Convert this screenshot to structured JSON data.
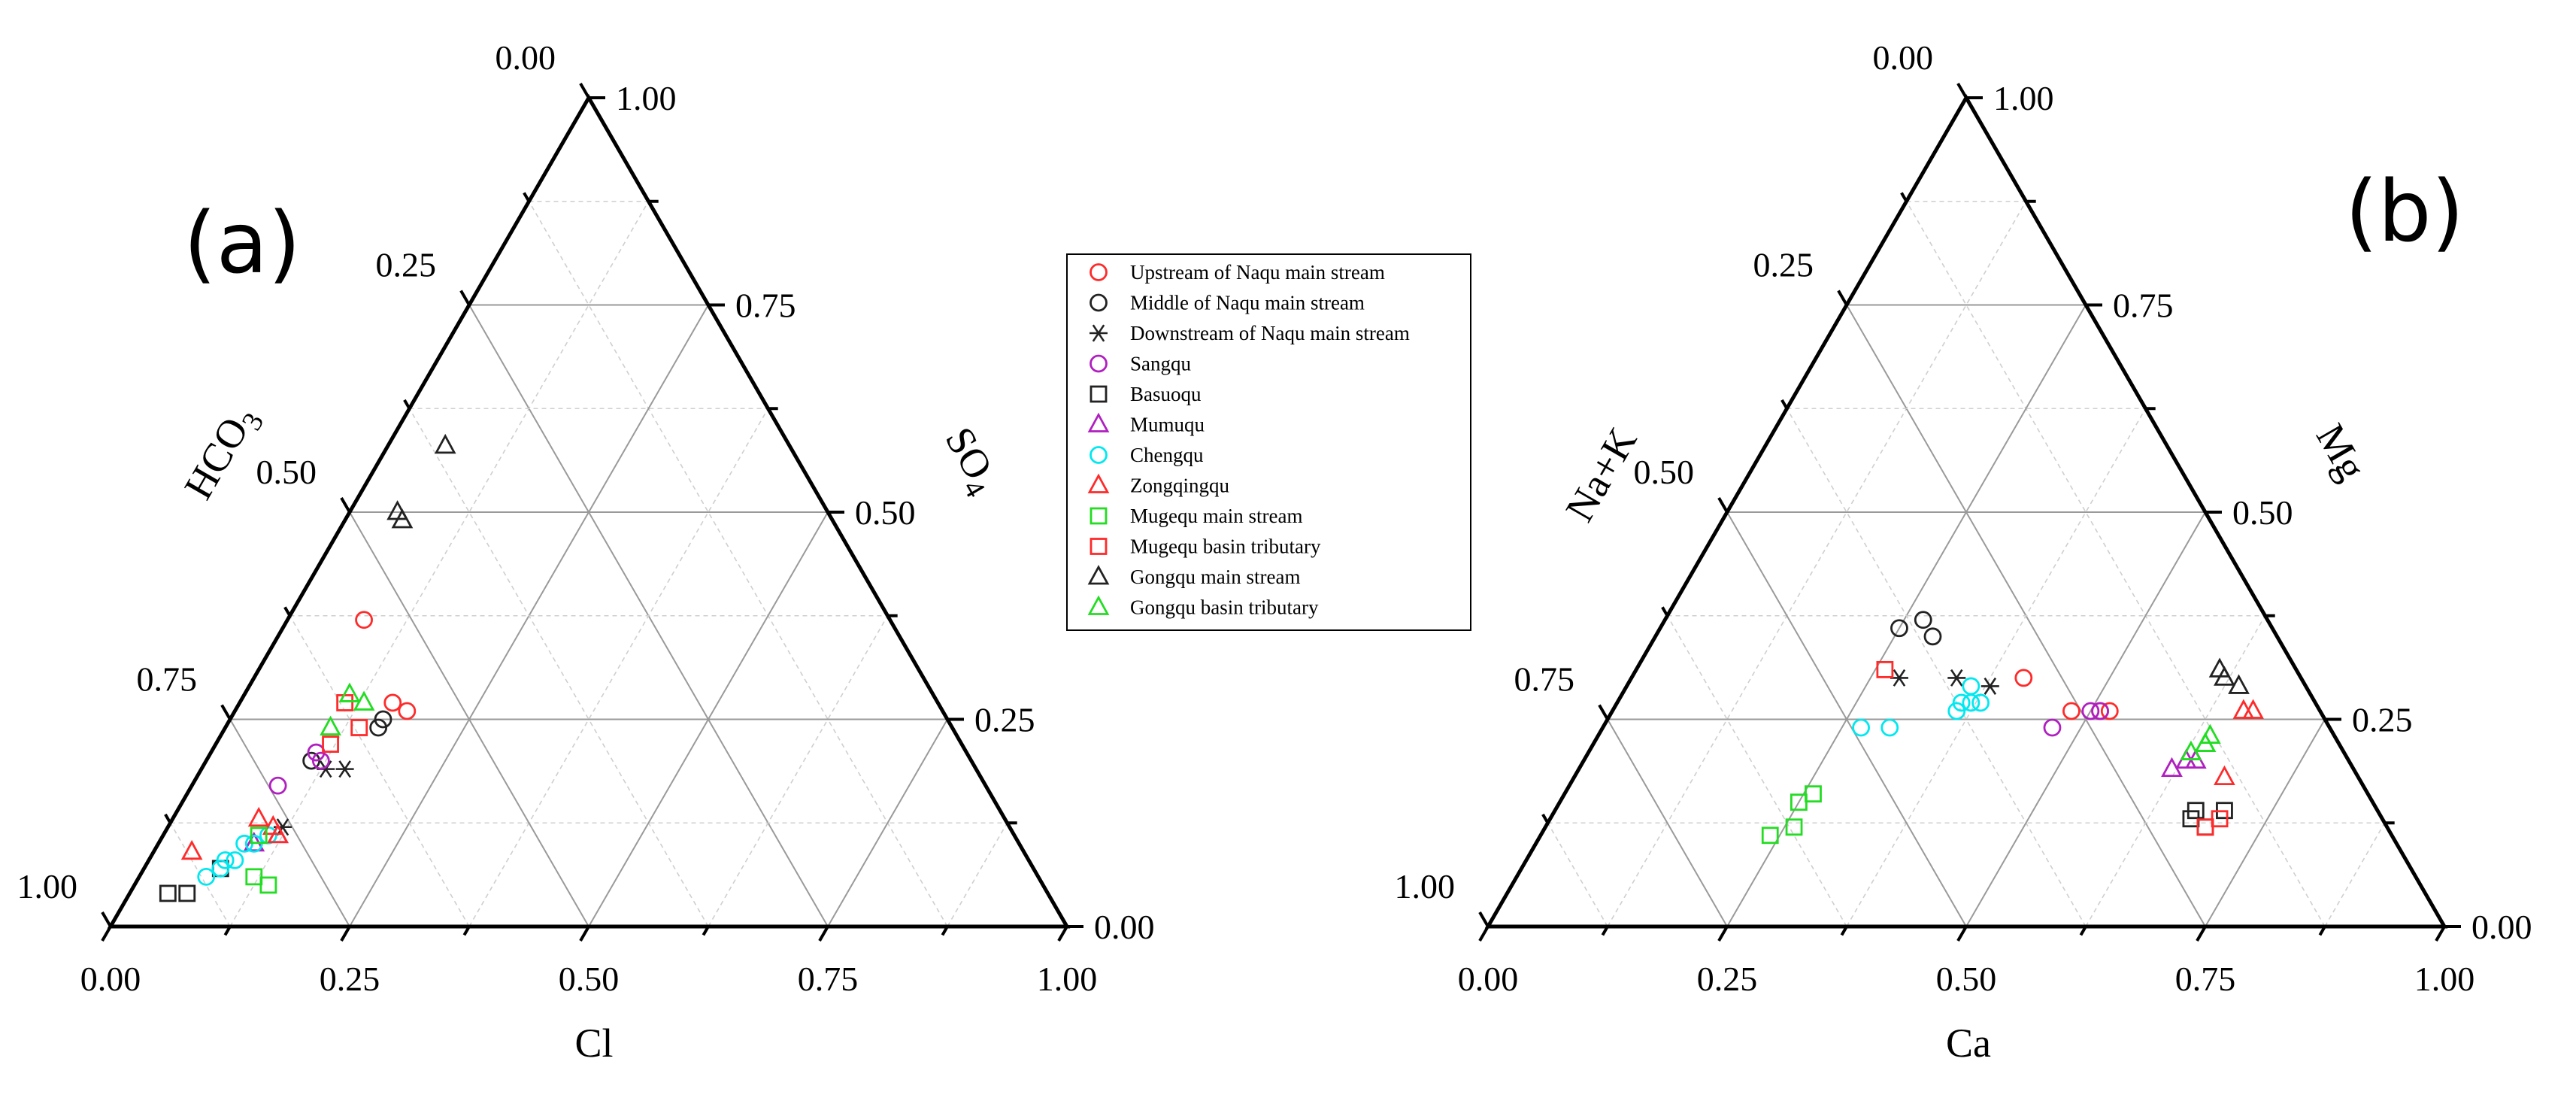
{
  "colors": {
    "red": "#ff2a2a",
    "black": "#222222",
    "purple": "#b01fc0",
    "cyan": "#00e8f0",
    "green": "#22dd22"
  },
  "legend": [
    {
      "id": "upstream-naqu",
      "label": "Upstream of Naqu main stream",
      "marker": "circle",
      "color": "#ff2a2a"
    },
    {
      "id": "middle-naqu",
      "label": "Middle of Naqu main stream",
      "marker": "circle",
      "color": "#222222"
    },
    {
      "id": "downstream-naqu",
      "label": "Downstream of Naqu main stream",
      "marker": "star",
      "color": "#222222"
    },
    {
      "id": "sangqu",
      "label": "Sangqu",
      "marker": "circle",
      "color": "#b01fc0"
    },
    {
      "id": "basuoqu",
      "label": "Basuoqu",
      "marker": "square",
      "color": "#222222"
    },
    {
      "id": "mumuqu",
      "label": "Mumuqu",
      "marker": "triangle",
      "color": "#b01fc0"
    },
    {
      "id": "chengqu",
      "label": "Chengqu",
      "marker": "circle",
      "color": "#00e8f0"
    },
    {
      "id": "zongqingqu",
      "label": "Zongqingqu",
      "marker": "triangle",
      "color": "#ff2a2a"
    },
    {
      "id": "mugequ-main",
      "label": "Mugequ main stream",
      "marker": "square",
      "color": "#22dd22"
    },
    {
      "id": "mugequ-trib",
      "label": "Mugequ basin tributary",
      "marker": "square",
      "color": "#ff2a2a"
    },
    {
      "id": "gongqu-main",
      "label": "Gongqu main stream",
      "marker": "triangle",
      "color": "#222222"
    },
    {
      "id": "gongqu-trib",
      "label": "Gongqu basin tributary",
      "marker": "triangle",
      "color": "#22dd22"
    }
  ],
  "chart_data": [
    {
      "type": "ternary",
      "panel": "(a)",
      "bottom_axis": {
        "label": "Cl",
        "ticks": [
          "0.00",
          "0.25",
          "0.50",
          "0.75",
          "1.00"
        ]
      },
      "left_axis": {
        "label": "HCO3",
        "ticks": [
          "1.00",
          "0.75",
          "0.50",
          "0.25",
          "0.00"
        ]
      },
      "right_axis": {
        "label": "SO4",
        "ticks": [
          "0.00",
          "0.25",
          "0.50",
          "0.75",
          "1.00"
        ]
      },
      "range": [
        0,
        1
      ],
      "grid": true,
      "series": [
        {
          "id": "upstream-naqu",
          "points": [
            [
              0.16,
              0.27
            ],
            [
              0.18,
              0.26
            ],
            [
              0.08,
              0.37
            ]
          ]
        },
        {
          "id": "middle-naqu",
          "points": [
            [
              0.16,
              0.25
            ],
            [
              0.16,
              0.24
            ],
            [
              0.11,
              0.2
            ]
          ]
        },
        {
          "id": "downstream-naqu",
          "points": [
            [
              0.15,
              0.19
            ],
            [
              0.13,
              0.19
            ],
            [
              0.12,
              0.12
            ]
          ]
        },
        {
          "id": "sangqu",
          "points": [
            [
              0.11,
              0.21
            ],
            [
              0.12,
              0.2
            ],
            [
              0.09,
              0.17
            ]
          ]
        },
        {
          "id": "basuoqu",
          "points": [
            [
              0.04,
              0.04
            ],
            [
              0.06,
              0.04
            ],
            [
              0.08,
              0.07
            ]
          ]
        },
        {
          "id": "mumuqu",
          "points": [
            [
              0.1,
              0.1
            ],
            [
              0.12,
              0.11
            ]
          ]
        },
        {
          "id": "chengqu",
          "points": [
            [
              0.11,
              0.11
            ],
            [
              0.1,
              0.1
            ],
            [
              0.09,
              0.1
            ],
            [
              0.09,
              0.08
            ],
            [
              0.08,
              0.08
            ],
            [
              0.08,
              0.07
            ],
            [
              0.07,
              0.06
            ]
          ]
        },
        {
          "id": "zongqingqu",
          "points": [
            [
              0.09,
              0.13
            ],
            [
              0.11,
              0.12
            ],
            [
              0.12,
              0.11
            ],
            [
              0.04,
              0.09
            ]
          ]
        },
        {
          "id": "mugequ-main",
          "points": [
            [
              0.1,
              0.11
            ],
            [
              0.12,
              0.06
            ],
            [
              0.14,
              0.05
            ]
          ]
        },
        {
          "id": "mugequ-trib",
          "points": [
            [
              0.12,
              0.22
            ],
            [
              0.14,
              0.24
            ],
            [
              0.11,
              0.27
            ]
          ]
        },
        {
          "id": "gongqu-main",
          "points": [
            [
              0.06,
              0.58
            ],
            [
              0.05,
              0.5
            ],
            [
              0.06,
              0.49
            ]
          ]
        },
        {
          "id": "gongqu-trib",
          "points": [
            [
              0.11,
              0.28
            ],
            [
              0.13,
              0.27
            ],
            [
              0.11,
              0.24
            ]
          ]
        }
      ]
    },
    {
      "type": "ternary",
      "panel": "(b)",
      "bottom_axis": {
        "label": "Ca",
        "ticks": [
          "0.00",
          "0.25",
          "0.50",
          "0.75",
          "1.00"
        ]
      },
      "left_axis": {
        "label": "Na+K",
        "ticks": [
          "1.00",
          "0.75",
          "0.50",
          "0.25",
          "0.00"
        ]
      },
      "right_axis": {
        "label": "Mg",
        "ticks": [
          "0.00",
          "0.25",
          "0.50",
          "0.75",
          "1.00"
        ]
      },
      "range": [
        0,
        1
      ],
      "grid": true,
      "series": [
        {
          "id": "upstream-naqu",
          "points": [
            [
              0.41,
              0.3
            ],
            [
              0.48,
              0.26
            ],
            [
              0.51,
              0.26
            ],
            [
              0.52,
              0.26
            ]
          ]
        },
        {
          "id": "middle-naqu",
          "points": [
            [
              0.25,
              0.36
            ],
            [
              0.27,
              0.37
            ],
            [
              0.29,
              0.35
            ]
          ]
        },
        {
          "id": "downstream-naqu",
          "points": [
            [
              0.38,
              0.29
            ],
            [
              0.34,
              0.3
            ],
            [
              0.28,
              0.3
            ]
          ]
        },
        {
          "id": "sangqu",
          "points": [
            [
              0.51,
              0.26
            ],
            [
              0.5,
              0.26
            ],
            [
              0.47,
              0.24
            ]
          ]
        },
        {
          "id": "basuoqu",
          "points": [
            [
              0.7,
              0.14
            ],
            [
              0.69,
              0.12
            ],
            [
              0.67,
              0.13
            ],
            [
              0.67,
              0.14
            ]
          ]
        },
        {
          "id": "mumuqu",
          "points": [
            [
              0.62,
              0.19
            ],
            [
              0.63,
              0.2
            ],
            [
              0.64,
              0.2
            ]
          ]
        },
        {
          "id": "chengqu",
          "points": [
            [
              0.36,
              0.29
            ],
            [
              0.36,
              0.27
            ],
            [
              0.38,
              0.27
            ],
            [
              0.37,
              0.27
            ],
            [
              0.36,
              0.26
            ],
            [
              0.3,
              0.24
            ],
            [
              0.27,
              0.24
            ]
          ]
        },
        {
          "id": "zongqingqu",
          "points": [
            [
              0.66,
              0.26
            ],
            [
              0.67,
              0.26
            ],
            [
              0.68,
              0.18
            ]
          ]
        },
        {
          "id": "mugequ-main",
          "points": [
            [
              0.26,
              0.12
            ],
            [
              0.26,
              0.16
            ],
            [
              0.25,
              0.15
            ],
            [
              0.24,
              0.11
            ]
          ]
        },
        {
          "id": "mugequ-trib",
          "points": [
            [
              0.26,
              0.31
            ],
            [
              0.69,
              0.12
            ],
            [
              0.7,
              0.13
            ]
          ]
        },
        {
          "id": "gongqu-main",
          "points": [
            [
              0.61,
              0.31
            ],
            [
              0.62,
              0.3
            ],
            [
              0.64,
              0.29
            ]
          ]
        },
        {
          "id": "gongqu-trib",
          "points": [
            [
              0.64,
              0.23
            ],
            [
              0.63,
              0.21
            ],
            [
              0.64,
              0.22
            ],
            [
              0.64,
              0.22
            ]
          ]
        }
      ]
    }
  ]
}
